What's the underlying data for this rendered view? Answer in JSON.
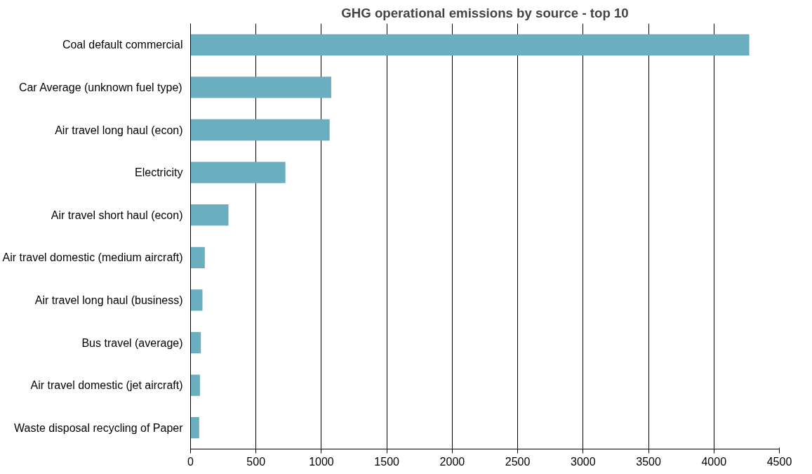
{
  "chart_data": {
    "type": "bar",
    "orientation": "horizontal",
    "title": "GHG operational emissions by source - top 10",
    "categories": [
      "Coal default commercial",
      "Car Average (unknown fuel type)",
      "Air travel long haul (econ)",
      "Electricity",
      "Air travel short haul (econ)",
      "Air travel domestic (medium aircraft)",
      "Air travel long haul (business)",
      "Bus travel (average)",
      "Air travel domestic (jet aircraft)",
      "Waste disposal recycling of Paper"
    ],
    "values": [
      4270,
      1075,
      1063,
      725,
      290,
      109,
      91,
      79,
      72,
      66
    ],
    "color": "#6aaebf",
    "xlim": [
      0,
      4500
    ],
    "xticks": [
      0,
      500,
      1000,
      1500,
      2000,
      2500,
      3000,
      3500,
      4000,
      4500
    ],
    "grid": "x"
  }
}
